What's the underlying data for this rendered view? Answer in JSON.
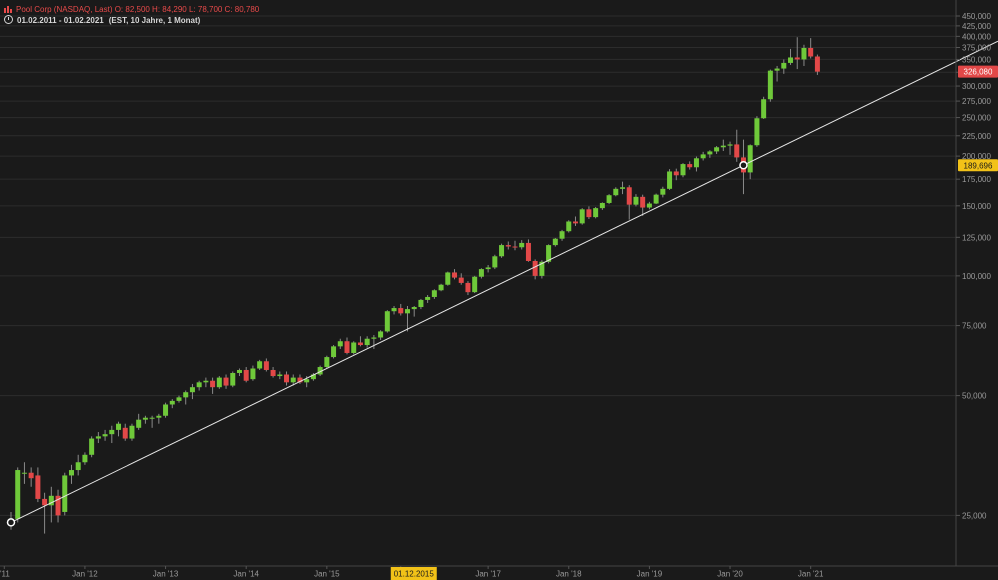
{
  "header": {
    "line1": "Pool Corp  (NASDAQ, Last)  O: 82,500   H: 84,290   L: 78,700   C: 80,780",
    "range": "01.02.2011 - 01.02.2021",
    "range_info": "(EST, 10 Jahre, 1 Monat)"
  },
  "colors": {
    "up": "#6fc93a",
    "down": "#e24848",
    "trend": "#e6e6e6",
    "grid": "#2c2c2c",
    "last_price_bg": "#e24848",
    "trend_price_bg": "#f2c218",
    "date_highlight_bg": "#f2c218"
  },
  "chart_data": {
    "type": "candlestick",
    "y_scale": "log",
    "ylim": [
      21000,
      470000
    ],
    "y_ticks": [
      "450,000",
      "425,000",
      "400,000",
      "375,000",
      "350,000",
      "325,000",
      "300,000",
      "275,000",
      "250,000",
      "225,000",
      "200,000",
      "175,000",
      "150,000",
      "125,000",
      "100,000",
      "75,000",
      "50,000",
      "25,000"
    ],
    "x_ticks": [
      "'11",
      "Jan '12",
      "Jan '13",
      "Jan '14",
      "Jan '15",
      "01.12.2015",
      "Jan '17",
      "Jan '18",
      "Jan '19",
      "Jan '20",
      "Jan '21"
    ],
    "highlighted_x_tick": "01.12.2015",
    "last_price_label": "326,080",
    "trend_price_label": "189,696",
    "trend_line": {
      "start": [
        "2011-02",
        24000
      ],
      "through": [
        "2020-03",
        189696
      ]
    },
    "candles": [
      {
        "d": "2011-02",
        "o": 24000,
        "h": 25500,
        "l": 23000,
        "c": 24500
      },
      {
        "d": "2011-03",
        "o": 24500,
        "h": 33000,
        "l": 24000,
        "c": 32500
      },
      {
        "d": "2011-04",
        "o": 32000,
        "h": 34000,
        "l": 30000,
        "c": 32000
      },
      {
        "d": "2011-05",
        "o": 32000,
        "h": 33000,
        "l": 29500,
        "c": 31000
      },
      {
        "d": "2011-06",
        "o": 31500,
        "h": 33000,
        "l": 27000,
        "c": 27500
      },
      {
        "d": "2011-07",
        "o": 27500,
        "h": 28500,
        "l": 22500,
        "c": 26500
      },
      {
        "d": "2011-08",
        "o": 26500,
        "h": 29500,
        "l": 24000,
        "c": 28000
      },
      {
        "d": "2011-09",
        "o": 28000,
        "h": 29000,
        "l": 24000,
        "c": 25000
      },
      {
        "d": "2011-10",
        "o": 25500,
        "h": 32000,
        "l": 25000,
        "c": 31500
      },
      {
        "d": "2011-11",
        "o": 31500,
        "h": 33500,
        "l": 30000,
        "c": 32500
      },
      {
        "d": "2011-12",
        "o": 32500,
        "h": 35500,
        "l": 31500,
        "c": 34000
      },
      {
        "d": "2012-01",
        "o": 34000,
        "h": 36000,
        "l": 33500,
        "c": 35500
      },
      {
        "d": "2012-02",
        "o": 35500,
        "h": 39500,
        "l": 35000,
        "c": 39000
      },
      {
        "d": "2012-03",
        "o": 39000,
        "h": 40500,
        "l": 38000,
        "c": 39500
      },
      {
        "d": "2012-04",
        "o": 39500,
        "h": 41000,
        "l": 38500,
        "c": 40000
      },
      {
        "d": "2012-05",
        "o": 40000,
        "h": 42000,
        "l": 38000,
        "c": 41000
      },
      {
        "d": "2012-06",
        "o": 41000,
        "h": 43000,
        "l": 39500,
        "c": 42500
      },
      {
        "d": "2012-07",
        "o": 41500,
        "h": 42500,
        "l": 38500,
        "c": 39000
      },
      {
        "d": "2012-08",
        "o": 39000,
        "h": 42500,
        "l": 38500,
        "c": 42000
      },
      {
        "d": "2012-09",
        "o": 41500,
        "h": 45000,
        "l": 41000,
        "c": 43500
      },
      {
        "d": "2012-10",
        "o": 43500,
        "h": 44500,
        "l": 42500,
        "c": 44000
      },
      {
        "d": "2012-11",
        "o": 44000,
        "h": 44500,
        "l": 41500,
        "c": 44000
      },
      {
        "d": "2012-12",
        "o": 44000,
        "h": 45000,
        "l": 42500,
        "c": 44500
      },
      {
        "d": "2013-01",
        "o": 44500,
        "h": 48000,
        "l": 44000,
        "c": 47500
      },
      {
        "d": "2013-02",
        "o": 47500,
        "h": 49000,
        "l": 46500,
        "c": 48500
      },
      {
        "d": "2013-03",
        "o": 48500,
        "h": 50000,
        "l": 48000,
        "c": 49500
      },
      {
        "d": "2013-04",
        "o": 49500,
        "h": 51500,
        "l": 47500,
        "c": 51000
      },
      {
        "d": "2013-05",
        "o": 51000,
        "h": 53500,
        "l": 49000,
        "c": 52500
      },
      {
        "d": "2013-06",
        "o": 52500,
        "h": 54500,
        "l": 51500,
        "c": 54000
      },
      {
        "d": "2013-07",
        "o": 54000,
        "h": 55500,
        "l": 52500,
        "c": 54500
      },
      {
        "d": "2013-08",
        "o": 54500,
        "h": 55500,
        "l": 50500,
        "c": 52500
      },
      {
        "d": "2013-09",
        "o": 52500,
        "h": 56000,
        "l": 52000,
        "c": 55500
      },
      {
        "d": "2013-10",
        "o": 55500,
        "h": 56500,
        "l": 52000,
        "c": 53000
      },
      {
        "d": "2013-11",
        "o": 53000,
        "h": 57500,
        "l": 52500,
        "c": 57000
      },
      {
        "d": "2013-12",
        "o": 57000,
        "h": 58500,
        "l": 56000,
        "c": 58000
      },
      {
        "d": "2014-01",
        "o": 58000,
        "h": 59000,
        "l": 54000,
        "c": 54500
      },
      {
        "d": "2014-02",
        "o": 55000,
        "h": 59500,
        "l": 54500,
        "c": 58500
      },
      {
        "d": "2014-03",
        "o": 58500,
        "h": 61500,
        "l": 58000,
        "c": 61000
      },
      {
        "d": "2014-04",
        "o": 61000,
        "h": 62000,
        "l": 57500,
        "c": 58000
      },
      {
        "d": "2014-05",
        "o": 58000,
        "h": 59000,
        "l": 55500,
        "c": 56000
      },
      {
        "d": "2014-06",
        "o": 56000,
        "h": 57500,
        "l": 55000,
        "c": 56500
      },
      {
        "d": "2014-07",
        "o": 56500,
        "h": 57500,
        "l": 53000,
        "c": 54000
      },
      {
        "d": "2014-08",
        "o": 54000,
        "h": 56500,
        "l": 53000,
        "c": 55500
      },
      {
        "d": "2014-09",
        "o": 55500,
        "h": 56500,
        "l": 53500,
        "c": 54000
      },
      {
        "d": "2014-10",
        "o": 54000,
        "h": 56000,
        "l": 52500,
        "c": 55000
      },
      {
        "d": "2014-11",
        "o": 55000,
        "h": 57000,
        "l": 54500,
        "c": 56500
      },
      {
        "d": "2014-12",
        "o": 56500,
        "h": 59500,
        "l": 56000,
        "c": 59000
      },
      {
        "d": "2015-01",
        "o": 59000,
        "h": 63000,
        "l": 58500,
        "c": 62500
      },
      {
        "d": "2015-02",
        "o": 62500,
        "h": 67000,
        "l": 62000,
        "c": 66500
      },
      {
        "d": "2015-03",
        "o": 66500,
        "h": 69500,
        "l": 65500,
        "c": 68500
      },
      {
        "d": "2015-04",
        "o": 68500,
        "h": 70000,
        "l": 63500,
        "c": 64000
      },
      {
        "d": "2015-05",
        "o": 64000,
        "h": 68500,
        "l": 63500,
        "c": 68000
      },
      {
        "d": "2015-06",
        "o": 68000,
        "h": 70500,
        "l": 66500,
        "c": 67000
      },
      {
        "d": "2015-07",
        "o": 67000,
        "h": 70500,
        "l": 66000,
        "c": 69500
      },
      {
        "d": "2015-08",
        "o": 69500,
        "h": 71000,
        "l": 65500,
        "c": 70000
      },
      {
        "d": "2015-09",
        "o": 70000,
        "h": 73000,
        "l": 69000,
        "c": 72500
      },
      {
        "d": "2015-10",
        "o": 72500,
        "h": 82000,
        "l": 72000,
        "c": 81500
      },
      {
        "d": "2015-11",
        "o": 81500,
        "h": 84000,
        "l": 80000,
        "c": 83000
      },
      {
        "d": "2015-12",
        "o": 83000,
        "h": 85000,
        "l": 79500,
        "c": 80500
      },
      {
        "d": "2016-01",
        "o": 80500,
        "h": 84000,
        "l": 72500,
        "c": 82500
      },
      {
        "d": "2016-02",
        "o": 82500,
        "h": 84000,
        "l": 79000,
        "c": 83500
      },
      {
        "d": "2016-03",
        "o": 83500,
        "h": 87500,
        "l": 82500,
        "c": 87000
      },
      {
        "d": "2016-04",
        "o": 87000,
        "h": 89500,
        "l": 85500,
        "c": 88500
      },
      {
        "d": "2016-05",
        "o": 88500,
        "h": 92500,
        "l": 87500,
        "c": 92000
      },
      {
        "d": "2016-06",
        "o": 92000,
        "h": 95500,
        "l": 91500,
        "c": 95000
      },
      {
        "d": "2016-07",
        "o": 95000,
        "h": 102500,
        "l": 94500,
        "c": 102000
      },
      {
        "d": "2016-08",
        "o": 102000,
        "h": 104000,
        "l": 98000,
        "c": 99000
      },
      {
        "d": "2016-09",
        "o": 99000,
        "h": 101500,
        "l": 95000,
        "c": 96000
      },
      {
        "d": "2016-10",
        "o": 96000,
        "h": 97000,
        "l": 89500,
        "c": 91000
      },
      {
        "d": "2016-11",
        "o": 91000,
        "h": 100000,
        "l": 90500,
        "c": 99500
      },
      {
        "d": "2016-12",
        "o": 99500,
        "h": 104500,
        "l": 98500,
        "c": 104000
      },
      {
        "d": "2017-01",
        "o": 104000,
        "h": 106500,
        "l": 102000,
        "c": 105000
      },
      {
        "d": "2017-02",
        "o": 105000,
        "h": 113000,
        "l": 104000,
        "c": 112000
      },
      {
        "d": "2017-03",
        "o": 112000,
        "h": 120500,
        "l": 111000,
        "c": 119500
      },
      {
        "d": "2017-04",
        "o": 119500,
        "h": 122000,
        "l": 116500,
        "c": 118500
      },
      {
        "d": "2017-05",
        "o": 118500,
        "h": 122500,
        "l": 116000,
        "c": 118000
      },
      {
        "d": "2017-06",
        "o": 118000,
        "h": 123000,
        "l": 116500,
        "c": 121000
      },
      {
        "d": "2017-07",
        "o": 121000,
        "h": 123500,
        "l": 108500,
        "c": 109000
      },
      {
        "d": "2017-08",
        "o": 109000,
        "h": 110000,
        "l": 98000,
        "c": 100000
      },
      {
        "d": "2017-09",
        "o": 100000,
        "h": 109500,
        "l": 98500,
        "c": 108500
      },
      {
        "d": "2017-10",
        "o": 108500,
        "h": 120000,
        "l": 107500,
        "c": 119500
      },
      {
        "d": "2017-11",
        "o": 119500,
        "h": 124500,
        "l": 118500,
        "c": 124000
      },
      {
        "d": "2017-12",
        "o": 124000,
        "h": 130500,
        "l": 122500,
        "c": 129500
      },
      {
        "d": "2018-01",
        "o": 129500,
        "h": 138000,
        "l": 128500,
        "c": 137000
      },
      {
        "d": "2018-02",
        "o": 137000,
        "h": 141000,
        "l": 133500,
        "c": 135500
      },
      {
        "d": "2018-03",
        "o": 135500,
        "h": 148000,
        "l": 134500,
        "c": 147000
      },
      {
        "d": "2018-04",
        "o": 147000,
        "h": 149500,
        "l": 139000,
        "c": 140500
      },
      {
        "d": "2018-05",
        "o": 140500,
        "h": 149000,
        "l": 139500,
        "c": 148000
      },
      {
        "d": "2018-06",
        "o": 148000,
        "h": 153000,
        "l": 146500,
        "c": 152500
      },
      {
        "d": "2018-07",
        "o": 152500,
        "h": 160500,
        "l": 151500,
        "c": 159500
      },
      {
        "d": "2018-08",
        "o": 159500,
        "h": 167000,
        "l": 158500,
        "c": 165500
      },
      {
        "d": "2018-09",
        "o": 165500,
        "h": 172500,
        "l": 160500,
        "c": 167000
      },
      {
        "d": "2018-10",
        "o": 167000,
        "h": 169000,
        "l": 138500,
        "c": 151000
      },
      {
        "d": "2018-11",
        "o": 151000,
        "h": 160500,
        "l": 149500,
        "c": 158000
      },
      {
        "d": "2018-12",
        "o": 158000,
        "h": 160000,
        "l": 141500,
        "c": 148500
      },
      {
        "d": "2019-01",
        "o": 148500,
        "h": 153500,
        "l": 147000,
        "c": 152000
      },
      {
        "d": "2019-02",
        "o": 152000,
        "h": 161000,
        "l": 151500,
        "c": 160000
      },
      {
        "d": "2019-03",
        "o": 160000,
        "h": 167500,
        "l": 157500,
        "c": 165500
      },
      {
        "d": "2019-04",
        "o": 165500,
        "h": 185500,
        "l": 164500,
        "c": 183000
      },
      {
        "d": "2019-05",
        "o": 183000,
        "h": 186000,
        "l": 174000,
        "c": 179000
      },
      {
        "d": "2019-06",
        "o": 179000,
        "h": 192000,
        "l": 177000,
        "c": 191000
      },
      {
        "d": "2019-07",
        "o": 191000,
        "h": 194000,
        "l": 185000,
        "c": 187500
      },
      {
        "d": "2019-08",
        "o": 187500,
        "h": 199500,
        "l": 183000,
        "c": 197500
      },
      {
        "d": "2019-09",
        "o": 197500,
        "h": 205000,
        "l": 195000,
        "c": 202000
      },
      {
        "d": "2019-10",
        "o": 202000,
        "h": 207000,
        "l": 198000,
        "c": 205500
      },
      {
        "d": "2019-11",
        "o": 205500,
        "h": 212000,
        "l": 202500,
        "c": 210500
      },
      {
        "d": "2019-12",
        "o": 210500,
        "h": 220000,
        "l": 206000,
        "c": 212500
      },
      {
        "d": "2020-01",
        "o": 212500,
        "h": 217500,
        "l": 201500,
        "c": 214000
      },
      {
        "d": "2020-02",
        "o": 214000,
        "h": 233000,
        "l": 193500,
        "c": 198500
      },
      {
        "d": "2020-03",
        "o": 198500,
        "h": 220000,
        "l": 160500,
        "c": 182000
      },
      {
        "d": "2020-04",
        "o": 182000,
        "h": 214000,
        "l": 175000,
        "c": 213000
      },
      {
        "d": "2020-05",
        "o": 213000,
        "h": 252000,
        "l": 211000,
        "c": 249000
      },
      {
        "d": "2020-06",
        "o": 249000,
        "h": 282000,
        "l": 248000,
        "c": 278000
      },
      {
        "d": "2020-07",
        "o": 278000,
        "h": 330000,
        "l": 274000,
        "c": 328000
      },
      {
        "d": "2020-08",
        "o": 328000,
        "h": 337000,
        "l": 308000,
        "c": 332000
      },
      {
        "d": "2020-09",
        "o": 332000,
        "h": 350000,
        "l": 322000,
        "c": 343000
      },
      {
        "d": "2020-10",
        "o": 343000,
        "h": 372000,
        "l": 339000,
        "c": 354000
      },
      {
        "d": "2020-11",
        "o": 354000,
        "h": 398000,
        "l": 331000,
        "c": 350000
      },
      {
        "d": "2020-12",
        "o": 350000,
        "h": 381000,
        "l": 337000,
        "c": 374000
      },
      {
        "d": "2021-01",
        "o": 374000,
        "h": 396000,
        "l": 352000,
        "c": 356000
      },
      {
        "d": "2021-02",
        "o": 356000,
        "h": 360000,
        "l": 320000,
        "c": 326080
      }
    ]
  }
}
